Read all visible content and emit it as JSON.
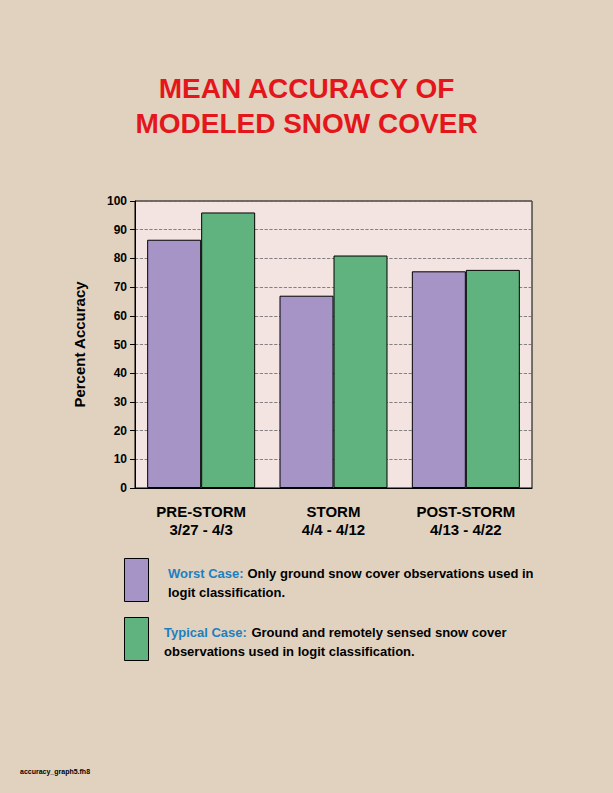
{
  "chart_data": {
    "type": "bar",
    "title": "MEAN ACCURACY OF\nMODELED SNOW COVER",
    "y_label": "Percent Accuracy",
    "categories": [
      "PRE-STORM\n3/27 - 4/3",
      "STORM\n4/4 - 4/12",
      "POST-STORM\n4/13 - 4/22"
    ],
    "series": [
      {
        "name": "Worst Case:",
        "description": "Only ground snow cover observations used in logit classification.",
        "color": "#A694C6",
        "values": [
          86.5,
          67,
          75.5
        ]
      },
      {
        "name": "Typical Case:",
        "description": "Ground and remotely sensed snow cover observations used in logit classification.",
        "color": "#60B27E",
        "values": [
          96,
          81,
          76
        ]
      }
    ],
    "ylim": [
      0,
      100
    ],
    "yticks": [
      0,
      10,
      20,
      30,
      40,
      50,
      60,
      70,
      80,
      90,
      100
    ],
    "grid": true,
    "footnote": "accuracy_graph5.fh8"
  }
}
